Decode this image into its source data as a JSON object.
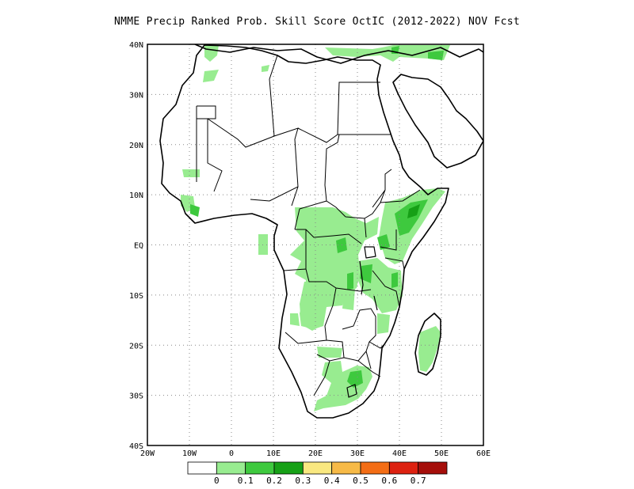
{
  "title": "NMME Precip Ranked Prob. Skill Score OctIC (2012-2022) NOV Fcst",
  "map": {
    "lon_range": [
      -20,
      60
    ],
    "lat_range": [
      -40,
      40
    ],
    "lon_ticks": [
      "20W",
      "10W",
      "0",
      "10E",
      "20E",
      "30E",
      "40E",
      "50E",
      "60E"
    ],
    "lat_ticks": [
      "40N",
      "30N",
      "20N",
      "10N",
      "EQ",
      "10S",
      "20S",
      "30S",
      "40S"
    ],
    "grid": true,
    "grid_style": "dotted"
  },
  "colorbar": {
    "colors": [
      "#ffffff",
      "#98ec90",
      "#3ec93e",
      "#16a016",
      "#f9e880",
      "#f7ba47",
      "#f36d15",
      "#dd2110",
      "#a50e0a"
    ],
    "labels": [
      "0",
      "0.1",
      "0.2",
      "0.3",
      "0.4",
      "0.5",
      "0.6",
      "0.7"
    ]
  },
  "colors": {
    "coast": "#000000",
    "grid": "#888888",
    "level1": "#98ec90",
    "level2": "#3ec93e",
    "level3": "#16a016"
  }
}
